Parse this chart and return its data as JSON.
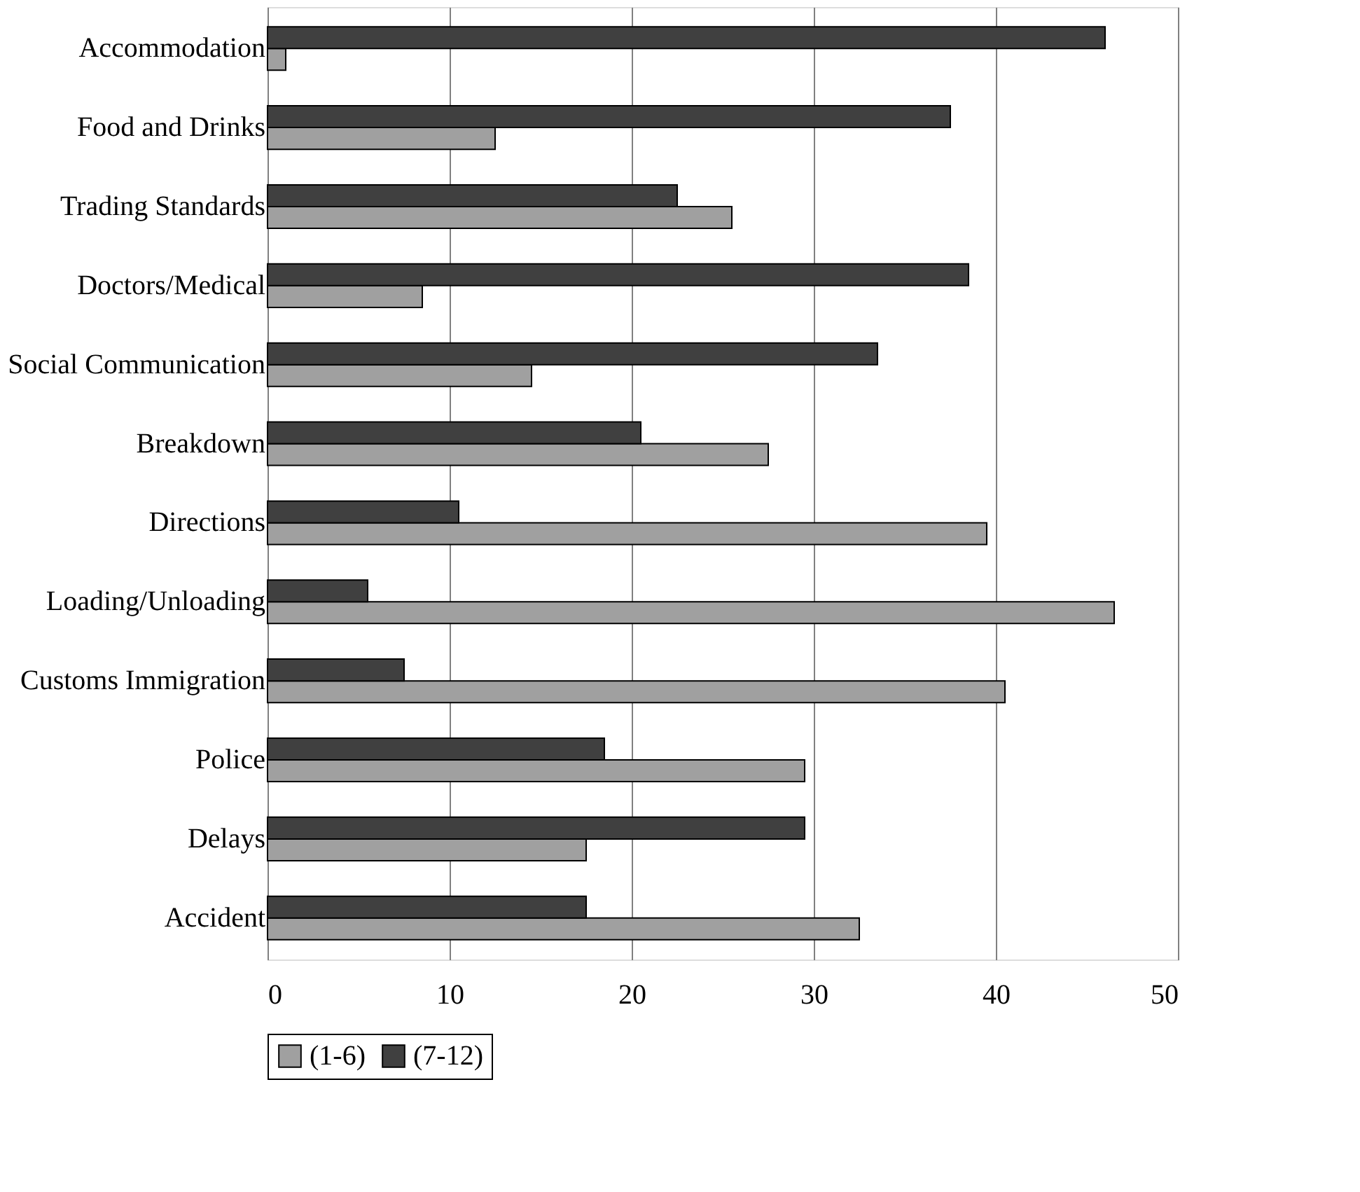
{
  "chart_data": {
    "type": "bar",
    "orientation": "horizontal",
    "categories": [
      "Accommodation",
      "Food and Drinks",
      "Trading Standards",
      "Doctors/Medical",
      "Social Communication",
      "Breakdown",
      "Directions",
      "Loading/Unloading",
      "Customs Immigration",
      "Police",
      "Delays",
      "Accident"
    ],
    "series": [
      {
        "name": "(1-6)",
        "color": "#a0a0a0",
        "values": [
          1,
          12.5,
          25.5,
          8.5,
          14.5,
          27.5,
          39.5,
          46.5,
          40.5,
          29.5,
          17.5,
          32.5
        ]
      },
      {
        "name": "(7-12)",
        "color": "#404040",
        "values": [
          46,
          37.5,
          22.5,
          38.5,
          33.5,
          20.5,
          10.5,
          5.5,
          7.5,
          18.5,
          29.5,
          17.5
        ]
      }
    ],
    "xlim": [
      0,
      50
    ],
    "xticks": [
      0,
      10,
      20,
      30,
      40,
      50
    ],
    "grid": "x",
    "legend": "bottom"
  }
}
